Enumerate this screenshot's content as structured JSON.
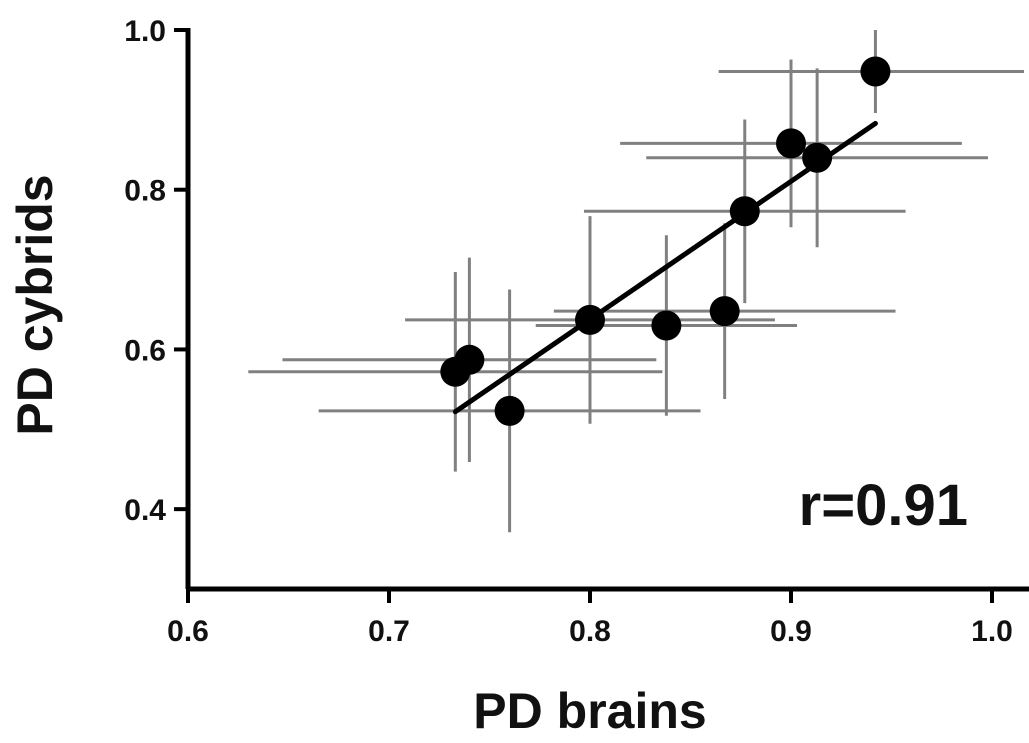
{
  "chart_data": {
    "type": "scatter",
    "title": "",
    "xlabel": "PD brains",
    "ylabel": "PD cybrids",
    "xlim": [
      0.6,
      1.0
    ],
    "ylim": [
      0.3,
      1.0
    ],
    "x_ticks": [
      "0.6",
      "0.7",
      "0.8",
      "0.9",
      "1.0"
    ],
    "x_tick_values": [
      0.6,
      0.7,
      0.8,
      0.9,
      1.0
    ],
    "y_ticks": [
      "0.4",
      "0.6",
      "0.8",
      "1.0"
    ],
    "y_tick_values": [
      0.4,
      0.6,
      0.8,
      1.0
    ],
    "annotation": "r=0.91",
    "grid": false,
    "points": [
      {
        "x": 0.733,
        "y": 0.572,
        "xerr": 0.103,
        "yerr": 0.125
      },
      {
        "x": 0.74,
        "y": 0.587,
        "xerr": 0.093,
        "yerr": 0.128
      },
      {
        "x": 0.76,
        "y": 0.523,
        "xerr": 0.095,
        "yerr": 0.152
      },
      {
        "x": 0.8,
        "y": 0.637,
        "xerr": 0.092,
        "yerr": 0.13
      },
      {
        "x": 0.838,
        "y": 0.63,
        "xerr": 0.065,
        "yerr": 0.113
      },
      {
        "x": 0.867,
        "y": 0.648,
        "xerr": 0.085,
        "yerr": 0.11
      },
      {
        "x": 0.877,
        "y": 0.773,
        "xerr": 0.08,
        "yerr": 0.115
      },
      {
        "x": 0.9,
        "y": 0.858,
        "xerr": 0.085,
        "yerr": 0.105
      },
      {
        "x": 0.913,
        "y": 0.84,
        "xerr": 0.085,
        "yerr": 0.112
      },
      {
        "x": 0.942,
        "y": 0.948,
        "xerr": 0.078,
        "yerr": 0.052
      }
    ],
    "fit_line": {
      "x": [
        0.733,
        0.942
      ],
      "y": [
        0.522,
        0.883
      ]
    },
    "colors": {
      "points": "#000000",
      "error_bars": "#808080",
      "fit_line": "#000000",
      "axes": "#000000"
    }
  }
}
